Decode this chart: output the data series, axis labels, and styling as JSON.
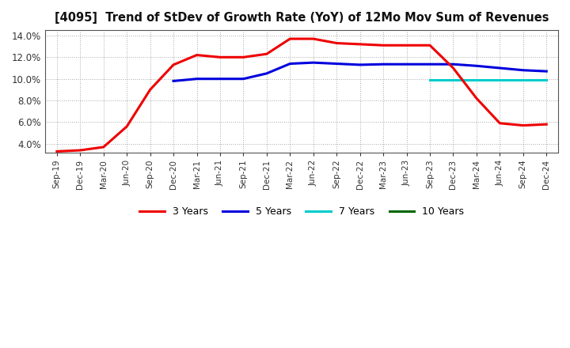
{
  "title": "[4095]  Trend of StDev of Growth Rate (YoY) of 12Mo Mov Sum of Revenues",
  "ylim": [
    0.032,
    0.145
  ],
  "yticks": [
    0.04,
    0.06,
    0.08,
    0.1,
    0.12,
    0.14
  ],
  "background_color": "#ffffff",
  "plot_bg_color": "#ffffff",
  "grid_color": "#aaaaaa",
  "line_colors": {
    "3y": "#ee0000",
    "5y": "#0000dd",
    "7y": "#00cccc",
    "10y": "#006600"
  },
  "x_labels": [
    "Sep-19",
    "Dec-19",
    "Mar-20",
    "Jun-20",
    "Sep-20",
    "Dec-20",
    "Mar-21",
    "Jun-21",
    "Sep-21",
    "Dec-21",
    "Mar-22",
    "Jun-22",
    "Sep-22",
    "Dec-22",
    "Mar-23",
    "Jun-23",
    "Sep-23",
    "Dec-23",
    "Mar-24",
    "Jun-24",
    "Sep-24",
    "Dec-24"
  ],
  "series_3y": {
    "x": [
      0,
      1,
      2,
      3,
      4,
      5,
      6,
      7,
      8,
      9,
      10,
      11,
      12,
      13,
      14,
      15,
      16,
      17,
      18,
      19,
      20,
      21
    ],
    "y": [
      0.033,
      0.034,
      0.037,
      0.056,
      0.09,
      0.113,
      0.122,
      0.12,
      0.12,
      0.123,
      0.137,
      0.137,
      0.133,
      0.132,
      0.131,
      0.131,
      0.131,
      0.11,
      0.082,
      0.059,
      0.057,
      0.058
    ]
  },
  "series_5y": {
    "x": [
      5,
      6,
      7,
      8,
      9,
      10,
      11,
      12,
      13,
      14,
      15,
      16,
      17,
      18,
      19,
      20,
      21
    ],
    "y": [
      0.098,
      0.1,
      0.1,
      0.1,
      0.105,
      0.114,
      0.115,
      0.114,
      0.113,
      0.1135,
      0.1135,
      0.1135,
      0.1135,
      0.112,
      0.11,
      0.108,
      0.107
    ]
  },
  "series_7y": {
    "x": [
      16,
      17,
      18,
      19,
      20,
      21
    ],
    "y": [
      0.099,
      0.099,
      0.099,
      0.099,
      0.099,
      0.099
    ]
  },
  "series_10y": {
    "x": [],
    "y": []
  },
  "legend_labels": [
    "3 Years",
    "5 Years",
    "7 Years",
    "10 Years"
  ],
  "legend_colors": [
    "#ee0000",
    "#0000dd",
    "#00cccc",
    "#006600"
  ]
}
